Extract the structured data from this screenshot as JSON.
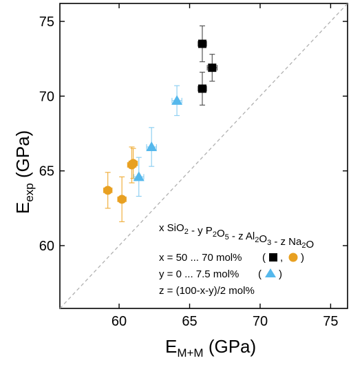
{
  "chart_data": {
    "type": "scatter",
    "title": "",
    "xlabel": {
      "main": "E",
      "sub": "M+M",
      "unit": " (GPa)"
    },
    "ylabel": {
      "main": "E",
      "sub": "exp",
      "unit": " (GPa)"
    },
    "xlim": [
      55.8,
      76.2
    ],
    "ylim": [
      55.8,
      76.2
    ],
    "xticks": [
      60,
      65,
      70,
      75
    ],
    "yticks": [
      60,
      65,
      70,
      75
    ],
    "grid": false,
    "reference_line": {
      "type": "y=x",
      "style": "dashed",
      "color": "#b0b0b0"
    },
    "colors": {
      "black_squares": "#000000",
      "orange_circles": "#e8a021",
      "blue_triangles": "#55b8ec",
      "errorbar_black": "#555555",
      "errorbar_orange": "#f0b040",
      "errorbar_blue": "#8fd0f2"
    },
    "series": [
      {
        "marker": "square",
        "color_key": "black_squares",
        "err_key": "errorbar_black",
        "points": [
          {
            "x": 65.9,
            "y": 73.5,
            "xerr": 0.3,
            "yerr": 1.2
          },
          {
            "x": 66.6,
            "y": 71.9,
            "xerr": 0.35,
            "yerr": 0.9
          },
          {
            "x": 65.9,
            "y": 70.5,
            "xerr": 0.3,
            "yerr": 1.1
          }
        ]
      },
      {
        "marker": "circle",
        "color_key": "orange_circles",
        "err_key": "errorbar_orange",
        "points": [
          {
            "x": 59.2,
            "y": 63.7,
            "xerr": 0.3,
            "yerr": 1.2
          },
          {
            "x": 60.2,
            "y": 63.1,
            "xerr": 0.3,
            "yerr": 1.5
          },
          {
            "x": 60.9,
            "y": 65.4,
            "xerr": 0.3,
            "yerr": 1.2
          },
          {
            "x": 61.0,
            "y": 65.5,
            "xerr": 0.3,
            "yerr": 1.0
          }
        ]
      },
      {
        "marker": "triangle",
        "color_key": "blue_triangles",
        "err_key": "errorbar_blue",
        "points": [
          {
            "x": 64.1,
            "y": 69.7,
            "xerr": 0.35,
            "yerr": 1.0
          },
          {
            "x": 62.3,
            "y": 66.6,
            "xerr": 0.35,
            "yerr": 1.3
          },
          {
            "x": 61.4,
            "y": 64.6,
            "xerr": 0.35,
            "yerr": 1.3
          }
        ]
      }
    ]
  },
  "legend": {
    "formula": [
      {
        "t": "x SiO",
        "s": ""
      },
      {
        "t": "2",
        "s": "sub"
      },
      {
        "t": " - y P",
        "s": ""
      },
      {
        "t": "2",
        "s": "sub"
      },
      {
        "t": "O",
        "s": ""
      },
      {
        "t": "5",
        "s": "sub"
      },
      {
        "t": " - z Al",
        "s": ""
      },
      {
        "t": "2",
        "s": "sub"
      },
      {
        "t": "O",
        "s": ""
      },
      {
        "t": "3",
        "s": "sub"
      },
      {
        "t": " - z Na",
        "s": ""
      },
      {
        "t": "2",
        "s": "sub"
      },
      {
        "t": "O",
        "s": ""
      }
    ],
    "line_x": "x = 50 ... 70 mol%",
    "line_y": "y = 0 ... 7.5 mol%",
    "line_z": "z = (100-x-y)/2 mol%",
    "paren_open": "(",
    "paren_close": ")",
    "comma": ","
  }
}
